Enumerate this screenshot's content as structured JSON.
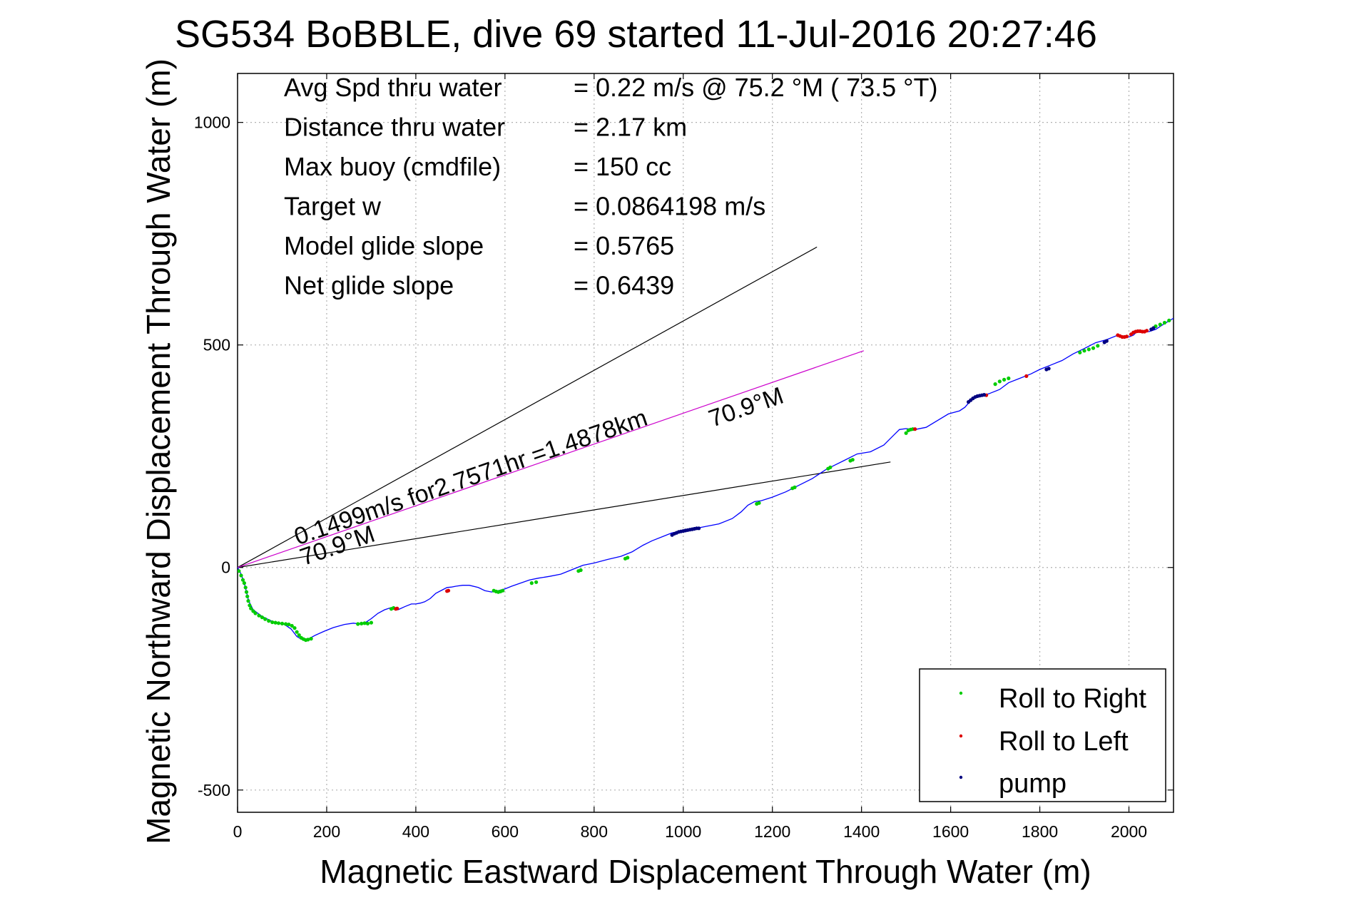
{
  "chart_data": {
    "type": "scatter",
    "title": "SG534 BoBBLE, dive 69 started 11-Jul-2016 20:27:46",
    "xlabel": "Magnetic Eastward Displacement Through Water (m)",
    "ylabel": "Magnetic Northward Displacement Through Water (m)",
    "xlim": [
      0,
      2100
    ],
    "ylim": [
      -550,
      1110
    ],
    "xticks": [
      0,
      200,
      400,
      600,
      800,
      1000,
      1200,
      1400,
      1600,
      1800,
      2000
    ],
    "yticks": [
      -500,
      0,
      500,
      1000
    ],
    "grid": true,
    "legend_position": "bottom-right",
    "stats": [
      {
        "label": "Avg Spd thru water",
        "value": "=  0.22 m/s @  75.2 °M ( 73.5 °T)"
      },
      {
        "label": "Distance thru water",
        "value": "=  2.17 km"
      },
      {
        "label": "Max buoy (cmdfile)",
        "value": "= 150 cc"
      },
      {
        "label": "Target w",
        "value": "= 0.0864198 m/s"
      },
      {
        "label": "Model glide slope",
        "value": "= 0.5765"
      },
      {
        "label": "Net glide slope",
        "value": "= 0.6439"
      }
    ],
    "reference_lines": [
      {
        "x": [
          0,
          1300
        ],
        "y": [
          0,
          720
        ],
        "color": "#000000"
      },
      {
        "x": [
          0,
          1465
        ],
        "y": [
          0,
          237
        ],
        "color": "#000000"
      },
      {
        "x": [
          0,
          1405
        ],
        "y": [
          0,
          487
        ],
        "color": "#cc00cc"
      }
    ],
    "annotations": [
      {
        "text": "0.1499m/s for2.7571hr =1.4878km",
        "x": 135,
        "y": 50,
        "angle": 19
      },
      {
        "text": "70.9°M",
        "x": 1065,
        "y": 315,
        "angle": 19
      },
      {
        "text": "70.9°M",
        "x": 148,
        "y": 4,
        "angle": 19
      }
    ],
    "series": [
      {
        "name": "track",
        "color": "#0000ff",
        "x": [
          0,
          8,
          15,
          20,
          25,
          35,
          55,
          80,
          105,
          120,
          133,
          145,
          160,
          175,
          195,
          215,
          240,
          260,
          275,
          285,
          300,
          315,
          330,
          345,
          360,
          375,
          390,
          400,
          410,
          420,
          432,
          445,
          460,
          470,
          480,
          490,
          505,
          520,
          540,
          555,
          570,
          585,
          600,
          615,
          635,
          655,
          675,
          700,
          725,
          750,
          775,
          800,
          830,
          860,
          885,
          910,
          930,
          955,
          975,
          990,
          1010,
          1030,
          1050,
          1080,
          1110,
          1130,
          1145,
          1160,
          1175,
          1200,
          1230,
          1260,
          1290,
          1320,
          1340,
          1360,
          1390,
          1420,
          1450,
          1470,
          1485,
          1500,
          1520,
          1545,
          1570,
          1595,
          1620,
          1632,
          1645,
          1660,
          1685,
          1710,
          1730,
          1755,
          1780,
          1800,
          1825,
          1850,
          1875,
          1900,
          1925,
          1950,
          1975,
          1990,
          2000,
          2010,
          2020,
          2030,
          2045,
          2060,
          2080,
          2100
        ],
        "y": [
          0,
          -15,
          -35,
          -55,
          -75,
          -95,
          -110,
          -122,
          -128,
          -138,
          -155,
          -162,
          -160,
          -152,
          -143,
          -135,
          -128,
          -125,
          -127,
          -125,
          -115,
          -103,
          -95,
          -90,
          -95,
          -88,
          -82,
          -82,
          -80,
          -77,
          -70,
          -58,
          -50,
          -45,
          -44,
          -42,
          -40,
          -40,
          -45,
          -52,
          -55,
          -52,
          -48,
          -42,
          -35,
          -28,
          -24,
          -20,
          -15,
          -5,
          5,
          10,
          18,
          25,
          35,
          50,
          60,
          70,
          78,
          80,
          84,
          88,
          92,
          98,
          110,
          125,
          140,
          148,
          150,
          158,
          170,
          185,
          200,
          220,
          230,
          240,
          255,
          260,
          275,
          295,
          310,
          312,
          310,
          315,
          330,
          345,
          352,
          360,
          375,
          385,
          390,
          400,
          415,
          425,
          435,
          445,
          455,
          465,
          480,
          492,
          505,
          512,
          522,
          518,
          518,
          522,
          532,
          530,
          530,
          535,
          548,
          560
        ]
      }
    ],
    "markers": [
      {
        "name": "Roll to Right",
        "color": "#00cc00",
        "x": [
          3,
          8,
          12,
          15,
          18,
          20,
          22,
          24,
          27,
          30,
          35,
          40,
          48,
          55,
          62,
          70,
          78,
          85,
          92,
          100,
          108,
          115,
          122,
          128,
          133,
          138,
          143,
          148,
          153,
          158,
          165,
          270,
          278,
          285,
          292,
          300,
          345,
          350,
          575,
          580,
          585,
          590,
          595,
          660,
          670,
          765,
          770,
          870,
          875,
          1165,
          1170,
          1245,
          1250,
          1325,
          1330,
          1375,
          1380,
          1500,
          1505,
          1510,
          1515,
          1700,
          1710,
          1720,
          1730,
          1890,
          1900,
          1910,
          1920,
          1930,
          2060,
          2070,
          2080,
          2090
        ],
        "y": [
          -8,
          -18,
          -28,
          -35,
          -45,
          -55,
          -65,
          -75,
          -85,
          -92,
          -98,
          -103,
          -108,
          -112,
          -116,
          -120,
          -123,
          -124,
          -125,
          -126,
          -127,
          -128,
          -131,
          -136,
          -145,
          -152,
          -158,
          -161,
          -163,
          -162,
          -160,
          -127,
          -126,
          -125,
          -126,
          -124,
          -93,
          -91,
          -52,
          -54,
          -55,
          -54,
          -52,
          -35,
          -33,
          -8,
          -6,
          20,
          22,
          143,
          145,
          178,
          180,
          222,
          225,
          240,
          242,
          302,
          308,
          310,
          311,
          412,
          418,
          422,
          425,
          483,
          487,
          490,
          493,
          498,
          542,
          546,
          550,
          555
        ]
      },
      {
        "name": "Roll to Left",
        "color": "#dd0000",
        "x": [
          355,
          358,
          470,
          473,
          1520,
          1680,
          1770,
          1975,
          1980,
          1985,
          1990,
          1995,
          2005,
          2010,
          2015,
          2020,
          2025,
          2030,
          2035,
          2040
        ],
        "y": [
          -93,
          -92,
          -53,
          -52,
          311,
          387,
          430,
          522,
          520,
          518,
          518,
          519,
          524,
          528,
          530,
          531,
          531,
          530,
          530,
          532
        ]
      },
      {
        "name": "pump",
        "color": "#000080",
        "x": [
          975,
          980,
          985,
          990,
          995,
          1000,
          1005,
          1010,
          1015,
          1020,
          1025,
          1030,
          1035,
          1640,
          1645,
          1650,
          1655,
          1660,
          1665,
          1670,
          1675,
          1815,
          1820,
          1945,
          1950,
          2050,
          2055
        ],
        "y": [
          73,
          76,
          78,
          80,
          81,
          82,
          83,
          84,
          85,
          86,
          87,
          88,
          88,
          372,
          376,
          380,
          383,
          385,
          386,
          387,
          388,
          445,
          447,
          506,
          509,
          535,
          538
        ]
      }
    ]
  }
}
